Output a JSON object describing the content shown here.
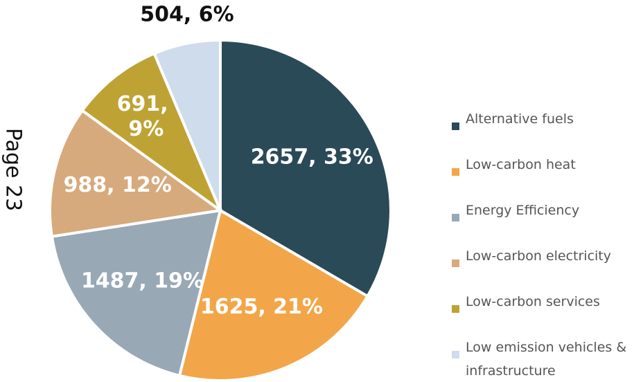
{
  "page_label": "Page 23",
  "chart_data": {
    "type": "pie",
    "categories": [
      "Alternative fuels",
      "Low-carbon heat",
      "Energy Efficiency",
      "Low-carbon electricity",
      "Low-carbon services",
      "Low emission vehicles & infrastructure"
    ],
    "values": [
      2657,
      1625,
      1487,
      988,
      691,
      504
    ],
    "value_labels": [
      "2657, 33%",
      "1625, 21%",
      "1487, 19%",
      "988, 12%",
      "691, 9%",
      "504, 6%"
    ],
    "colors": [
      "#2b4a58",
      "#f2a649",
      "#99a8b5",
      "#d6aa7d",
      "#bea334",
      "#cedcec"
    ],
    "legend": "right"
  }
}
